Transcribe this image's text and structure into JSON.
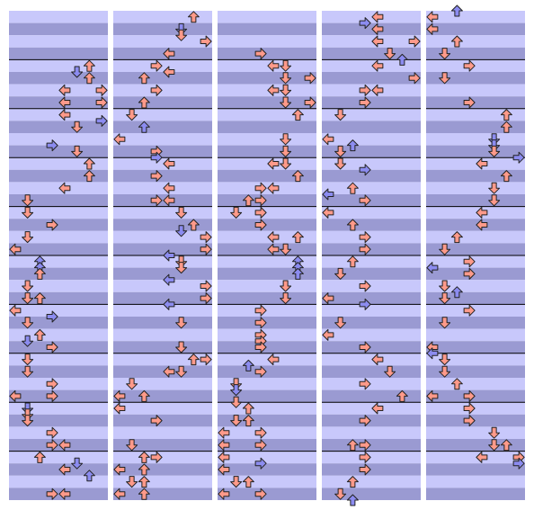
{
  "colors": [
    "#ff9a8a",
    "#8c8cf0"
  ],
  "columns": [
    [
      [
        9,
        6,
        0
      ],
      [
        10,
        5,
        1
      ],
      [
        11,
        6,
        0
      ],
      [
        13,
        4,
        0
      ],
      [
        13,
        7,
        0
      ],
      [
        15,
        4,
        0
      ],
      [
        15,
        7,
        0
      ],
      [
        17,
        4,
        0
      ],
      [
        18,
        7,
        1
      ],
      [
        19,
        5,
        0
      ],
      [
        22,
        3,
        1
      ],
      [
        23,
        5,
        0
      ],
      [
        25,
        6,
        0
      ],
      [
        27,
        6,
        0
      ],
      [
        29,
        4,
        0
      ],
      [
        31,
        1,
        0
      ],
      [
        33,
        1,
        0
      ],
      [
        35,
        3,
        0
      ],
      [
        37,
        1,
        0
      ],
      [
        39,
        0,
        0
      ],
      [
        41,
        2,
        1
      ],
      [
        42,
        2,
        1
      ],
      [
        43,
        2,
        0
      ],
      [
        45,
        1,
        0
      ],
      [
        47,
        1,
        0
      ],
      [
        47,
        2,
        0
      ],
      [
        49,
        0,
        0
      ],
      [
        50,
        3,
        1
      ],
      [
        51,
        1,
        0
      ],
      [
        53,
        2,
        0
      ],
      [
        54,
        1,
        1
      ],
      [
        55,
        3,
        0
      ],
      [
        57,
        1,
        0
      ],
      [
        59,
        1,
        0
      ],
      [
        61,
        3,
        0
      ],
      [
        63,
        0,
        0
      ],
      [
        63,
        3,
        0
      ],
      [
        65,
        1,
        1
      ],
      [
        66,
        1,
        0
      ],
      [
        67,
        1,
        0
      ],
      [
        69,
        3,
        0
      ],
      [
        71,
        3,
        0
      ],
      [
        71,
        4,
        0
      ],
      [
        73,
        2,
        0
      ],
      [
        74,
        5,
        1
      ],
      [
        75,
        4,
        0
      ],
      [
        76,
        6,
        1
      ],
      [
        79,
        3,
        0
      ],
      [
        79,
        4,
        0
      ]
    ],
    [
      [
        1,
        6,
        0
      ],
      [
        3,
        5,
        1
      ],
      [
        4,
        5,
        0
      ],
      [
        5,
        7,
        0
      ],
      [
        7,
        4,
        0
      ],
      [
        9,
        3,
        0
      ],
      [
        10,
        4,
        0
      ],
      [
        11,
        2,
        0
      ],
      [
        13,
        3,
        0
      ],
      [
        15,
        2,
        0
      ],
      [
        17,
        1,
        0
      ],
      [
        19,
        2,
        1
      ],
      [
        21,
        0,
        0
      ],
      [
        23,
        3,
        0
      ],
      [
        24,
        3,
        1
      ],
      [
        25,
        4,
        0
      ],
      [
        27,
        3,
        0
      ],
      [
        29,
        4,
        0
      ],
      [
        31,
        3,
        0
      ],
      [
        31,
        4,
        0
      ],
      [
        33,
        5,
        0
      ],
      [
        35,
        6,
        0
      ],
      [
        36,
        5,
        1
      ],
      [
        37,
        7,
        0
      ],
      [
        39,
        7,
        0
      ],
      [
        40,
        4,
        1
      ],
      [
        41,
        5,
        0
      ],
      [
        42,
        5,
        0
      ],
      [
        44,
        4,
        1
      ],
      [
        45,
        7,
        0
      ],
      [
        47,
        7,
        0
      ],
      [
        48,
        4,
        1
      ],
      [
        51,
        5,
        0
      ],
      [
        55,
        5,
        0
      ],
      [
        57,
        6,
        0
      ],
      [
        57,
        7,
        0
      ],
      [
        59,
        4,
        0
      ],
      [
        59,
        5,
        0
      ],
      [
        61,
        1,
        0
      ],
      [
        63,
        0,
        0
      ],
      [
        63,
        2,
        0
      ],
      [
        65,
        0,
        0
      ],
      [
        67,
        3,
        0
      ],
      [
        71,
        1,
        0
      ],
      [
        73,
        2,
        0
      ],
      [
        73,
        3,
        0
      ],
      [
        75,
        0,
        0
      ],
      [
        75,
        2,
        0
      ],
      [
        77,
        1,
        0
      ],
      [
        77,
        2,
        0
      ],
      [
        79,
        0,
        0
      ],
      [
        79,
        2,
        0
      ]
    ],
    [
      [
        7,
        3,
        0
      ],
      [
        9,
        4,
        0
      ],
      [
        9,
        5,
        0
      ],
      [
        11,
        5,
        0
      ],
      [
        11,
        7,
        0
      ],
      [
        13,
        4,
        0
      ],
      [
        13,
        5,
        0
      ],
      [
        15,
        5,
        0
      ],
      [
        15,
        7,
        0
      ],
      [
        17,
        6,
        0
      ],
      [
        21,
        5,
        0
      ],
      [
        23,
        5,
        0
      ],
      [
        25,
        4,
        0
      ],
      [
        25,
        5,
        0
      ],
      [
        27,
        6,
        0
      ],
      [
        29,
        3,
        0
      ],
      [
        29,
        4,
        0
      ],
      [
        31,
        2,
        0
      ],
      [
        31,
        3,
        0
      ],
      [
        33,
        1,
        0
      ],
      [
        33,
        3,
        0
      ],
      [
        35,
        3,
        0
      ],
      [
        37,
        4,
        0
      ],
      [
        37,
        6,
        0
      ],
      [
        39,
        4,
        0
      ],
      [
        39,
        5,
        0
      ],
      [
        41,
        6,
        1
      ],
      [
        42,
        6,
        1
      ],
      [
        43,
        6,
        1
      ],
      [
        45,
        5,
        0
      ],
      [
        47,
        5,
        0
      ],
      [
        49,
        3,
        0
      ],
      [
        51,
        3,
        0
      ],
      [
        53,
        3,
        0
      ],
      [
        54,
        3,
        0
      ],
      [
        55,
        3,
        0
      ],
      [
        57,
        4,
        0
      ],
      [
        58,
        2,
        1
      ],
      [
        59,
        3,
        0
      ],
      [
        61,
        1,
        0
      ],
      [
        62,
        1,
        1
      ],
      [
        64,
        1,
        0
      ],
      [
        65,
        2,
        0
      ],
      [
        67,
        1,
        0
      ],
      [
        67,
        2,
        0
      ],
      [
        69,
        0,
        0
      ],
      [
        69,
        3,
        0
      ],
      [
        71,
        0,
        0
      ],
      [
        71,
        3,
        0
      ],
      [
        73,
        0,
        0
      ],
      [
        74,
        3,
        1
      ],
      [
        75,
        0,
        0
      ],
      [
        77,
        1,
        0
      ],
      [
        77,
        2,
        0
      ],
      [
        79,
        0,
        0
      ],
      [
        79,
        3,
        0
      ]
    ],
    [
      [
        1,
        4,
        0
      ],
      [
        2,
        3,
        1
      ],
      [
        3,
        4,
        0
      ],
      [
        5,
        4,
        0
      ],
      [
        5,
        7,
        0
      ],
      [
        7,
        5,
        0
      ],
      [
        8,
        6,
        1
      ],
      [
        9,
        4,
        0
      ],
      [
        11,
        7,
        0
      ],
      [
        13,
        3,
        0
      ],
      [
        13,
        4,
        0
      ],
      [
        15,
        3,
        0
      ],
      [
        17,
        1,
        0
      ],
      [
        21,
        0,
        0
      ],
      [
        22,
        2,
        1
      ],
      [
        23,
        1,
        0
      ],
      [
        25,
        1,
        0
      ],
      [
        26,
        3,
        1
      ],
      [
        29,
        2,
        0
      ],
      [
        30,
        0,
        1
      ],
      [
        31,
        3,
        0
      ],
      [
        33,
        0,
        0
      ],
      [
        35,
        2,
        0
      ],
      [
        37,
        3,
        0
      ],
      [
        39,
        3,
        0
      ],
      [
        41,
        2,
        0
      ],
      [
        43,
        1,
        0
      ],
      [
        45,
        3,
        0
      ],
      [
        47,
        0,
        0
      ],
      [
        48,
        3,
        1
      ],
      [
        51,
        1,
        0
      ],
      [
        53,
        0,
        0
      ],
      [
        55,
        3,
        0
      ],
      [
        57,
        4,
        0
      ],
      [
        59,
        5,
        0
      ],
      [
        61,
        3,
        0
      ],
      [
        63,
        6,
        0
      ],
      [
        65,
        4,
        0
      ],
      [
        67,
        3,
        0
      ],
      [
        71,
        2,
        0
      ],
      [
        71,
        3,
        0
      ],
      [
        73,
        3,
        0
      ],
      [
        75,
        3,
        0
      ],
      [
        77,
        2,
        0
      ],
      [
        79,
        1,
        0
      ],
      [
        80,
        2,
        1
      ]
    ],
    [
      [
        0,
        2,
        1
      ],
      [
        1,
        0,
        0
      ],
      [
        3,
        0,
        0
      ],
      [
        5,
        2,
        0
      ],
      [
        7,
        1,
        0
      ],
      [
        9,
        3,
        0
      ],
      [
        11,
        1,
        0
      ],
      [
        15,
        3,
        0
      ],
      [
        17,
        6,
        0
      ],
      [
        19,
        6,
        0
      ],
      [
        21,
        5,
        1
      ],
      [
        22,
        5,
        1
      ],
      [
        23,
        5,
        0
      ],
      [
        24,
        7,
        1
      ],
      [
        25,
        4,
        0
      ],
      [
        27,
        6,
        0
      ],
      [
        29,
        5,
        0
      ],
      [
        31,
        5,
        0
      ],
      [
        33,
        4,
        0
      ],
      [
        35,
        4,
        0
      ],
      [
        37,
        2,
        0
      ],
      [
        39,
        1,
        0
      ],
      [
        41,
        3,
        0
      ],
      [
        42,
        0,
        1
      ],
      [
        43,
        3,
        0
      ],
      [
        45,
        1,
        0
      ],
      [
        46,
        2,
        1
      ],
      [
        47,
        1,
        0
      ],
      [
        49,
        3,
        0
      ],
      [
        51,
        1,
        0
      ],
      [
        55,
        0,
        0
      ],
      [
        56,
        0,
        1
      ],
      [
        57,
        1,
        0
      ],
      [
        59,
        1,
        0
      ],
      [
        61,
        2,
        0
      ],
      [
        63,
        0,
        0
      ],
      [
        63,
        3,
        0
      ],
      [
        65,
        3,
        0
      ],
      [
        67,
        3,
        0
      ],
      [
        69,
        5,
        0
      ],
      [
        71,
        5,
        0
      ],
      [
        71,
        6,
        0
      ],
      [
        73,
        4,
        0
      ],
      [
        73,
        7,
        0
      ],
      [
        74,
        7,
        1
      ]
    ]
  ]
}
